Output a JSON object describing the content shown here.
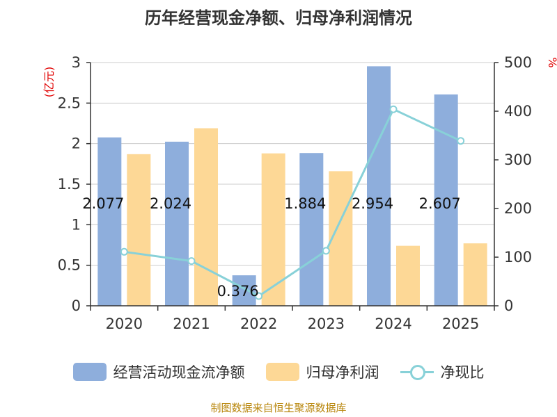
{
  "chart_data": {
    "type": "bar",
    "title": "历年经营现金净额、归母净利润情况",
    "categories": [
      "2020",
      "2021",
      "2022",
      "2023",
      "2024",
      "2025"
    ],
    "series": [
      {
        "name": "经营活动现金流净额",
        "type": "bar",
        "axis": "left",
        "color": "#8eaedc",
        "values": [
          2.077,
          2.024,
          0.376,
          1.884,
          2.954,
          2.607
        ]
      },
      {
        "name": "归母净利润",
        "type": "bar",
        "axis": "left",
        "color": "#fdd896",
        "values": [
          1.87,
          2.19,
          1.88,
          1.66,
          0.74,
          0.77
        ]
      },
      {
        "name": "净现比",
        "type": "line",
        "axis": "right",
        "color": "#88d1d8",
        "values": [
          111,
          92,
          20,
          113,
          404,
          339
        ]
      }
    ],
    "data_labels": [
      "2.077",
      "2.024",
      "0.376",
      "1.884",
      "2.954",
      "2.607"
    ],
    "left_axis": {
      "label": "(亿元)",
      "min": 0,
      "max": 3,
      "ticks": [
        0,
        0.5,
        1,
        1.5,
        2,
        2.5,
        3
      ],
      "tick_labels": [
        "0",
        "0.5",
        "1",
        "1.5",
        "2",
        "2.5",
        "3"
      ]
    },
    "right_axis": {
      "label": "%",
      "min": 0,
      "max": 500,
      "ticks": [
        0,
        100,
        200,
        300,
        400,
        500
      ],
      "tick_labels": [
        "0",
        "100",
        "200",
        "300",
        "400",
        "500"
      ]
    },
    "grid": true,
    "legend_position": "bottom",
    "source": "制图数据来自恒生聚源数据库"
  }
}
